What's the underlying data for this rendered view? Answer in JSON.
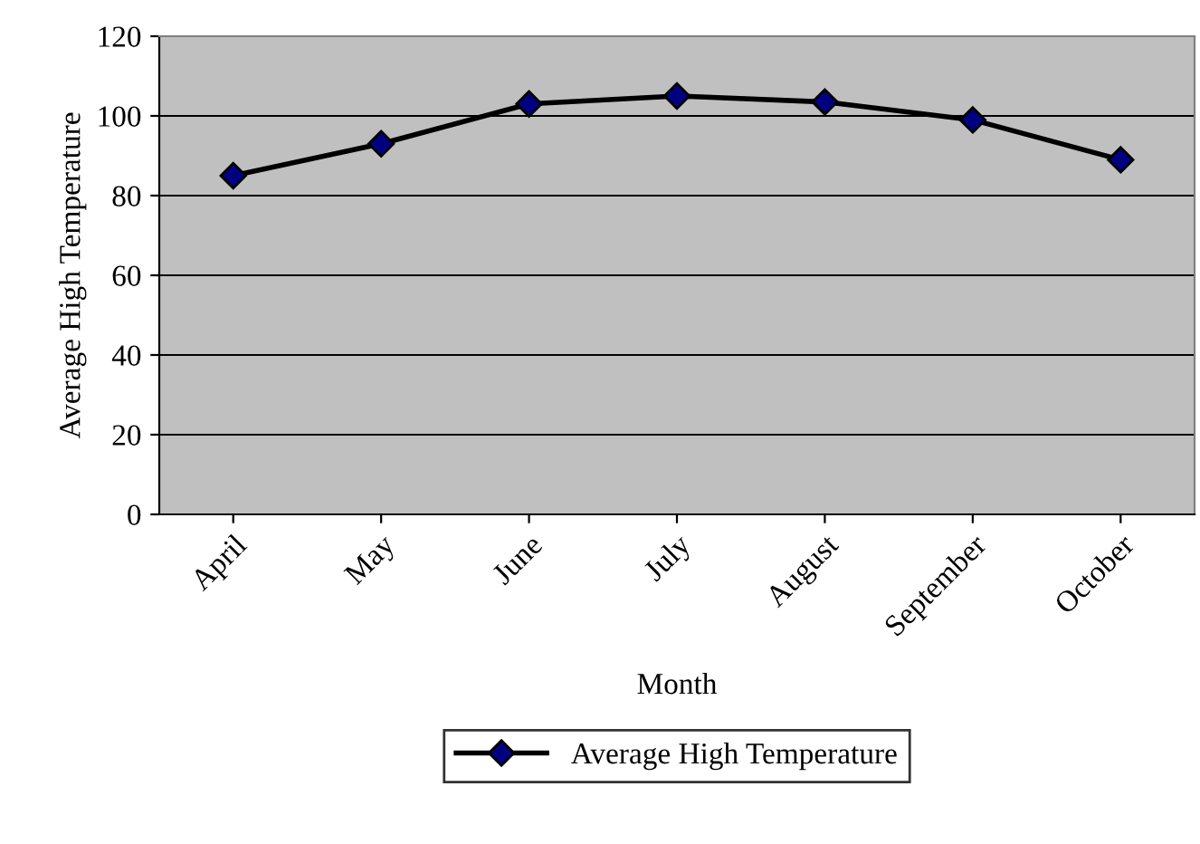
{
  "chart_data": {
    "type": "line",
    "xlabel": "Month",
    "ylabel": "Average High Temperature",
    "categories": [
      "April",
      "May",
      "June",
      "July",
      "August",
      "September",
      "October"
    ],
    "series": [
      {
        "name": "Average High Temperature",
        "color": "#000080",
        "values": [
          85,
          93,
          103,
          105,
          103.5,
          99,
          89
        ]
      }
    ],
    "ylim": [
      0,
      120
    ],
    "yticks": [
      0,
      20,
      40,
      60,
      80,
      100,
      120
    ],
    "grid": "y",
    "legend": "bottom",
    "marker": "diamond",
    "line_style": "solid"
  }
}
